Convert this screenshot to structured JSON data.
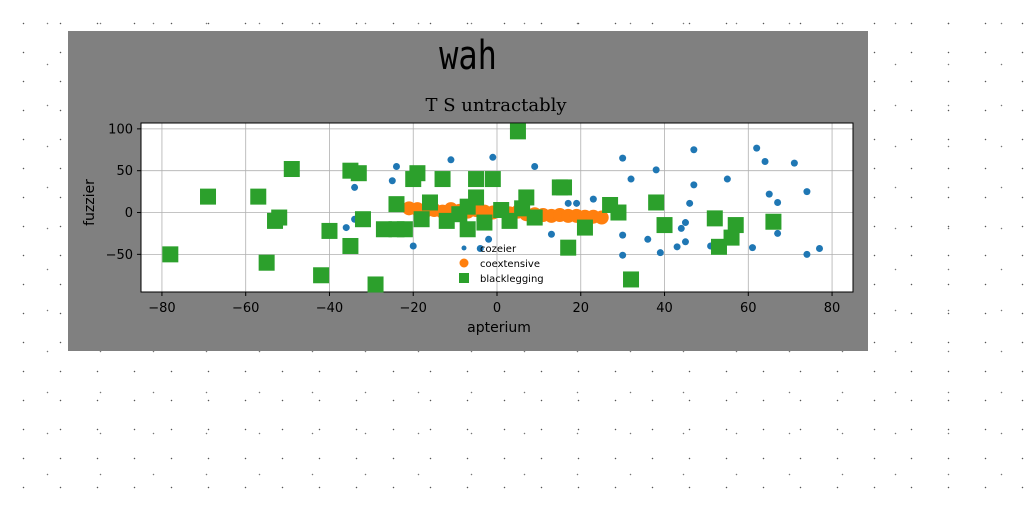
{
  "chart_data": {
    "type": "scatter",
    "suptitle": "wah",
    "title": "T S untractably",
    "xlabel": "apterium",
    "ylabel": "fuzzier",
    "xlim": [
      -85,
      85
    ],
    "ylim": [
      -95,
      107
    ],
    "xticks": [
      -80,
      -60,
      -40,
      -20,
      0,
      20,
      40,
      60,
      80
    ],
    "yticks": [
      -50,
      0,
      50,
      100
    ],
    "grid": true,
    "legend_position": "center-bottom",
    "series": [
      {
        "name": "cozeier",
        "color": "#1f77b4",
        "marker": "circle",
        "points": [
          [
            -36,
            -18
          ],
          [
            -34,
            -8
          ],
          [
            -34,
            30
          ],
          [
            -24,
            55
          ],
          [
            -25,
            38
          ],
          [
            -20,
            -40
          ],
          [
            -11,
            63
          ],
          [
            -4,
            -43
          ],
          [
            -2,
            -32
          ],
          [
            -1,
            66
          ],
          [
            9,
            55
          ],
          [
            13,
            -26
          ],
          [
            17,
            11
          ],
          [
            19,
            11
          ],
          [
            23,
            16
          ],
          [
            30,
            65
          ],
          [
            30,
            -27
          ],
          [
            30,
            -51
          ],
          [
            32,
            40
          ],
          [
            36,
            -32
          ],
          [
            38,
            51
          ],
          [
            39,
            -48
          ],
          [
            43,
            -41
          ],
          [
            44,
            -19
          ],
          [
            45,
            -12
          ],
          [
            45,
            -35
          ],
          [
            46,
            11
          ],
          [
            47,
            33
          ],
          [
            47,
            75
          ],
          [
            51,
            -40
          ],
          [
            55,
            40
          ],
          [
            61,
            -42
          ],
          [
            62,
            77
          ],
          [
            64,
            61
          ],
          [
            65,
            22
          ],
          [
            67,
            12
          ],
          [
            67,
            -25
          ],
          [
            71,
            59
          ],
          [
            74,
            25
          ],
          [
            74,
            -50
          ],
          [
            77,
            -43
          ]
        ]
      },
      {
        "name": "coextensive",
        "color": "#ff7f0e",
        "marker": "circle",
        "points": [
          [
            -21,
            5
          ],
          [
            -19,
            4
          ],
          [
            -17,
            2
          ],
          [
            -15,
            3
          ],
          [
            -13,
            1
          ],
          [
            -11,
            4
          ],
          [
            -9,
            2
          ],
          [
            -7,
            1
          ],
          [
            -5,
            3
          ],
          [
            -3,
            1
          ],
          [
            -1,
            0
          ],
          [
            1,
            2
          ],
          [
            3,
            -1
          ],
          [
            5,
            1
          ],
          [
            7,
            -2
          ],
          [
            9,
            -2
          ],
          [
            11,
            -3
          ],
          [
            13,
            -4
          ],
          [
            15,
            -3
          ],
          [
            17,
            -4
          ],
          [
            19,
            -4
          ],
          [
            21,
            -5
          ],
          [
            23,
            -5
          ],
          [
            25,
            -6
          ]
        ]
      },
      {
        "name": "blacklegging",
        "color": "#2ca02c",
        "marker": "square",
        "points": [
          [
            -78,
            -50
          ],
          [
            -69,
            19
          ],
          [
            -57,
            19
          ],
          [
            -55,
            -60
          ],
          [
            -53,
            -10
          ],
          [
            -52,
            -6
          ],
          [
            -49,
            52
          ],
          [
            -42,
            -75
          ],
          [
            -40,
            -22
          ],
          [
            -35,
            50
          ],
          [
            -35,
            -40
          ],
          [
            -33,
            47
          ],
          [
            -32,
            -8
          ],
          [
            -29,
            -86
          ],
          [
            -27,
            -20
          ],
          [
            -24,
            10
          ],
          [
            -24,
            -20
          ],
          [
            -22,
            -20
          ],
          [
            -20,
            40
          ],
          [
            -19,
            47
          ],
          [
            -18,
            -8
          ],
          [
            -16,
            12
          ],
          [
            -13,
            40
          ],
          [
            -12,
            -10
          ],
          [
            -9,
            -2
          ],
          [
            -7,
            -20
          ],
          [
            -7,
            7
          ],
          [
            -5,
            40
          ],
          [
            -5,
            18
          ],
          [
            -3,
            -12
          ],
          [
            -1,
            40
          ],
          [
            1,
            3
          ],
          [
            3,
            -10
          ],
          [
            5,
            97
          ],
          [
            6,
            5
          ],
          [
            7,
            18
          ],
          [
            9,
            -6
          ],
          [
            15,
            30
          ],
          [
            16,
            30
          ],
          [
            17,
            -42
          ],
          [
            21,
            -18
          ],
          [
            27,
            9
          ],
          [
            29,
            0
          ],
          [
            32,
            -80
          ],
          [
            38,
            12
          ],
          [
            40,
            -15
          ],
          [
            52,
            -7
          ],
          [
            53,
            -41
          ],
          [
            56,
            -30
          ],
          [
            57,
            -15
          ],
          [
            66,
            -11
          ]
        ]
      }
    ]
  }
}
